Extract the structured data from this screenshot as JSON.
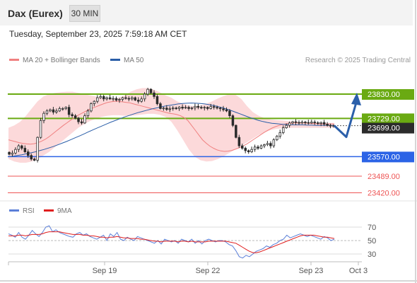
{
  "header": {
    "title": "Dax (Eurex)",
    "timeframe": "30 MIN"
  },
  "timestamp": "Tuesday, September 23, 2025 7:59:18 AM CET",
  "credit": "Research © 2025 Trading Central",
  "colors": {
    "resistance": "#6aaa12",
    "support": "#2b63e6",
    "target": "#ee5555",
    "current": "#2b2b2b",
    "candle": "#2b2b2b",
    "ma20": "#f08080",
    "ma50": "#2a5ea8",
    "band": "#fbd2d4",
    "rsi": "#5b7fd8",
    "rsi_ma": "#e01e1e",
    "arrow": "#2b5faa"
  },
  "chart_data": [
    {
      "type": "candlestick",
      "legend": [
        {
          "label": "MA 20 + Bollinger Bands",
          "color": "#f08080"
        },
        {
          "label": "MA 50",
          "color": "#2a5ea8"
        }
      ],
      "legend_position": "top-left",
      "ylim": [
        23390,
        23880
      ],
      "x_ticks": [
        "Sep 19",
        "Sep 22",
        "Sep 23",
        "Oct 3"
      ],
      "levels": [
        {
          "value": 23830.0,
          "label": "23830.00",
          "kind": "resistance"
        },
        {
          "value": 23729.0,
          "label": "23729.00",
          "kind": "resistance"
        },
        {
          "value": 23699.0,
          "label": "23699.00",
          "kind": "current"
        },
        {
          "value": 23570.0,
          "label": "23570.00",
          "kind": "support"
        },
        {
          "value": 23489.0,
          "label": "23489.00",
          "kind": "target"
        },
        {
          "value": 23420.0,
          "label": "23420.00",
          "kind": "target"
        }
      ],
      "close": [
        23580,
        23585,
        23600,
        23615,
        23605,
        23590,
        23575,
        23560,
        23555,
        23650,
        23720,
        23750,
        23760,
        23765,
        23755,
        23760,
        23770,
        23770,
        23775,
        23745,
        23740,
        23730,
        23715,
        23710,
        23740,
        23760,
        23790,
        23800,
        23815,
        23820,
        23810,
        23815,
        23810,
        23812,
        23805,
        23808,
        23815,
        23812,
        23810,
        23815,
        23805,
        23800,
        23810,
        23830,
        23850,
        23835,
        23820,
        23790,
        23770,
        23772,
        23766,
        23769,
        23772,
        23770,
        23776,
        23772,
        23775,
        23770,
        23773,
        23779,
        23775,
        23772,
        23775,
        23770,
        23778,
        23775,
        23772,
        23769,
        23765,
        23760,
        23740,
        23700,
        23650,
        23615,
        23605,
        23595,
        23590,
        23600,
        23610,
        23605,
        23615,
        23620,
        23625,
        23615,
        23640,
        23655,
        23670,
        23690,
        23700,
        23710,
        23715,
        23712,
        23710,
        23714,
        23712,
        23710,
        23714,
        23711,
        23708,
        23712,
        23705,
        23700,
        23698,
        23699
      ],
      "ma20": [
        23640,
        23636,
        23632,
        23628,
        23625,
        23623,
        23622,
        23624,
        23628,
        23634,
        23642,
        23652,
        23664,
        23676,
        23688,
        23700,
        23711,
        23722,
        23732,
        23742,
        23750,
        23758,
        23766,
        23772,
        23778,
        23784,
        23790,
        23795,
        23798,
        23800,
        23800,
        23798,
        23796,
        23794,
        23790,
        23786,
        23782,
        23778,
        23774,
        23770,
        23766,
        23762,
        23758,
        23754,
        23750,
        23748,
        23745,
        23740,
        23732,
        23720,
        23700,
        23680,
        23660,
        23640,
        23626,
        23614,
        23605,
        23598,
        23594,
        23592,
        23593,
        23596,
        23601,
        23607,
        23614,
        23622,
        23632,
        23642,
        23652,
        23662,
        23672,
        23681,
        23689,
        23695,
        23700,
        23704,
        23707,
        23709,
        23710,
        23711,
        23711,
        23710,
        23709,
        23708,
        23707,
        23706,
        23706,
        23706,
        23706,
        23706
      ],
      "ma50": [
        23570,
        23572,
        23575,
        23578,
        23582,
        23586,
        23590,
        23595,
        23600,
        23606,
        23612,
        23619,
        23626,
        23633,
        23641,
        23649,
        23657,
        23665,
        23674,
        23682,
        23690,
        23698,
        23706,
        23714,
        23721,
        23728,
        23735,
        23741,
        23747,
        23753,
        23758,
        23763,
        23768,
        23772,
        23776,
        23780,
        23783,
        23786,
        23789,
        23791,
        23792,
        23793,
        23792,
        23791,
        23789,
        23786,
        23782,
        23778,
        23773,
        23767,
        23761,
        23754,
        23747,
        23740,
        23733,
        23727,
        23721,
        23716,
        23712,
        23709,
        23707,
        23705,
        23704,
        23703,
        23702,
        23702,
        23702,
        23701,
        23701,
        23700,
        23700,
        23700,
        23700,
        23700
      ],
      "band_upper": [
        23690,
        23700,
        23715,
        23740,
        23770,
        23800,
        23820,
        23830,
        23835,
        23838,
        23840,
        23840,
        23835,
        23830,
        23825,
        23820,
        23815,
        23810,
        23810,
        23815,
        23825,
        23840,
        23850,
        23855,
        23855,
        23848,
        23838,
        23825,
        23815,
        23800,
        23790,
        23782,
        23780,
        23782,
        23790,
        23800,
        23812,
        23822,
        23830,
        23828,
        23810,
        23780,
        23755,
        23740,
        23730,
        23725,
        23722,
        23720,
        23718,
        23716,
        23714,
        23712,
        23710,
        23710,
        23710,
        23710,
        23710
      ],
      "band_lower": [
        23560,
        23550,
        23545,
        23545,
        23550,
        23560,
        23575,
        23590,
        23610,
        23630,
        23650,
        23670,
        23690,
        23705,
        23718,
        23728,
        23735,
        23740,
        23742,
        23742,
        23740,
        23740,
        23742,
        23745,
        23748,
        23748,
        23744,
        23735,
        23715,
        23680,
        23640,
        23600,
        23570,
        23555,
        23550,
        23552,
        23560,
        23572,
        23586,
        23600,
        23615,
        23630,
        23645,
        23660,
        23670,
        23680,
        23685,
        23688,
        23690,
        23690,
        23690,
        23690,
        23690,
        23690,
        23690,
        23690,
        23690
      ]
    },
    {
      "type": "line",
      "legend": [
        {
          "label": "RSI",
          "color": "#5b7fd8"
        },
        {
          "label": "9MA",
          "color": "#e01e1e"
        }
      ],
      "ylim": [
        15,
        85
      ],
      "y_ticks": [
        70,
        50,
        30
      ],
      "rsi": [
        60,
        58,
        55,
        62,
        55,
        52,
        58,
        65,
        60,
        56,
        62,
        70,
        72,
        63,
        66,
        62,
        60,
        58,
        56,
        55,
        60,
        62,
        58,
        60,
        56,
        54,
        52,
        55,
        58,
        50,
        60,
        56,
        62,
        52,
        50,
        55,
        52,
        50,
        56,
        54,
        52,
        50,
        48,
        46,
        50,
        45,
        52,
        50,
        48,
        50,
        46,
        52,
        50,
        48,
        52,
        46,
        50,
        45,
        50,
        52,
        50,
        48,
        50,
        50,
        48,
        44,
        42,
        35,
        26,
        24,
        28,
        26,
        30,
        34,
        36,
        38,
        42,
        40,
        44,
        46,
        50,
        52,
        58,
        54,
        56,
        58,
        60,
        58,
        56,
        58,
        56,
        54,
        52,
        56,
        54,
        50,
        52
      ],
      "rsi_ma": [
        57,
        57,
        57,
        58,
        58,
        57,
        58,
        59,
        59,
        59,
        60,
        62,
        63,
        63,
        63,
        63,
        62,
        61,
        60,
        59,
        59,
        59,
        58,
        58,
        57,
        57,
        56,
        55,
        55,
        54,
        55,
        55,
        56,
        55,
        54,
        54,
        53,
        53,
        53,
        52,
        52,
        51,
        50,
        49,
        49,
        48,
        49,
        49,
        49,
        49,
        48,
        49,
        49,
        48,
        49,
        48,
        48,
        48,
        48,
        49,
        49,
        49,
        49,
        49,
        49,
        48,
        47,
        46,
        43,
        40,
        37,
        34,
        32,
        32,
        33,
        35,
        37,
        39,
        41,
        43,
        45,
        47,
        49,
        51,
        53,
        55,
        57,
        58,
        58,
        58,
        58,
        57,
        56,
        55,
        55,
        54,
        53
      ]
    }
  ]
}
